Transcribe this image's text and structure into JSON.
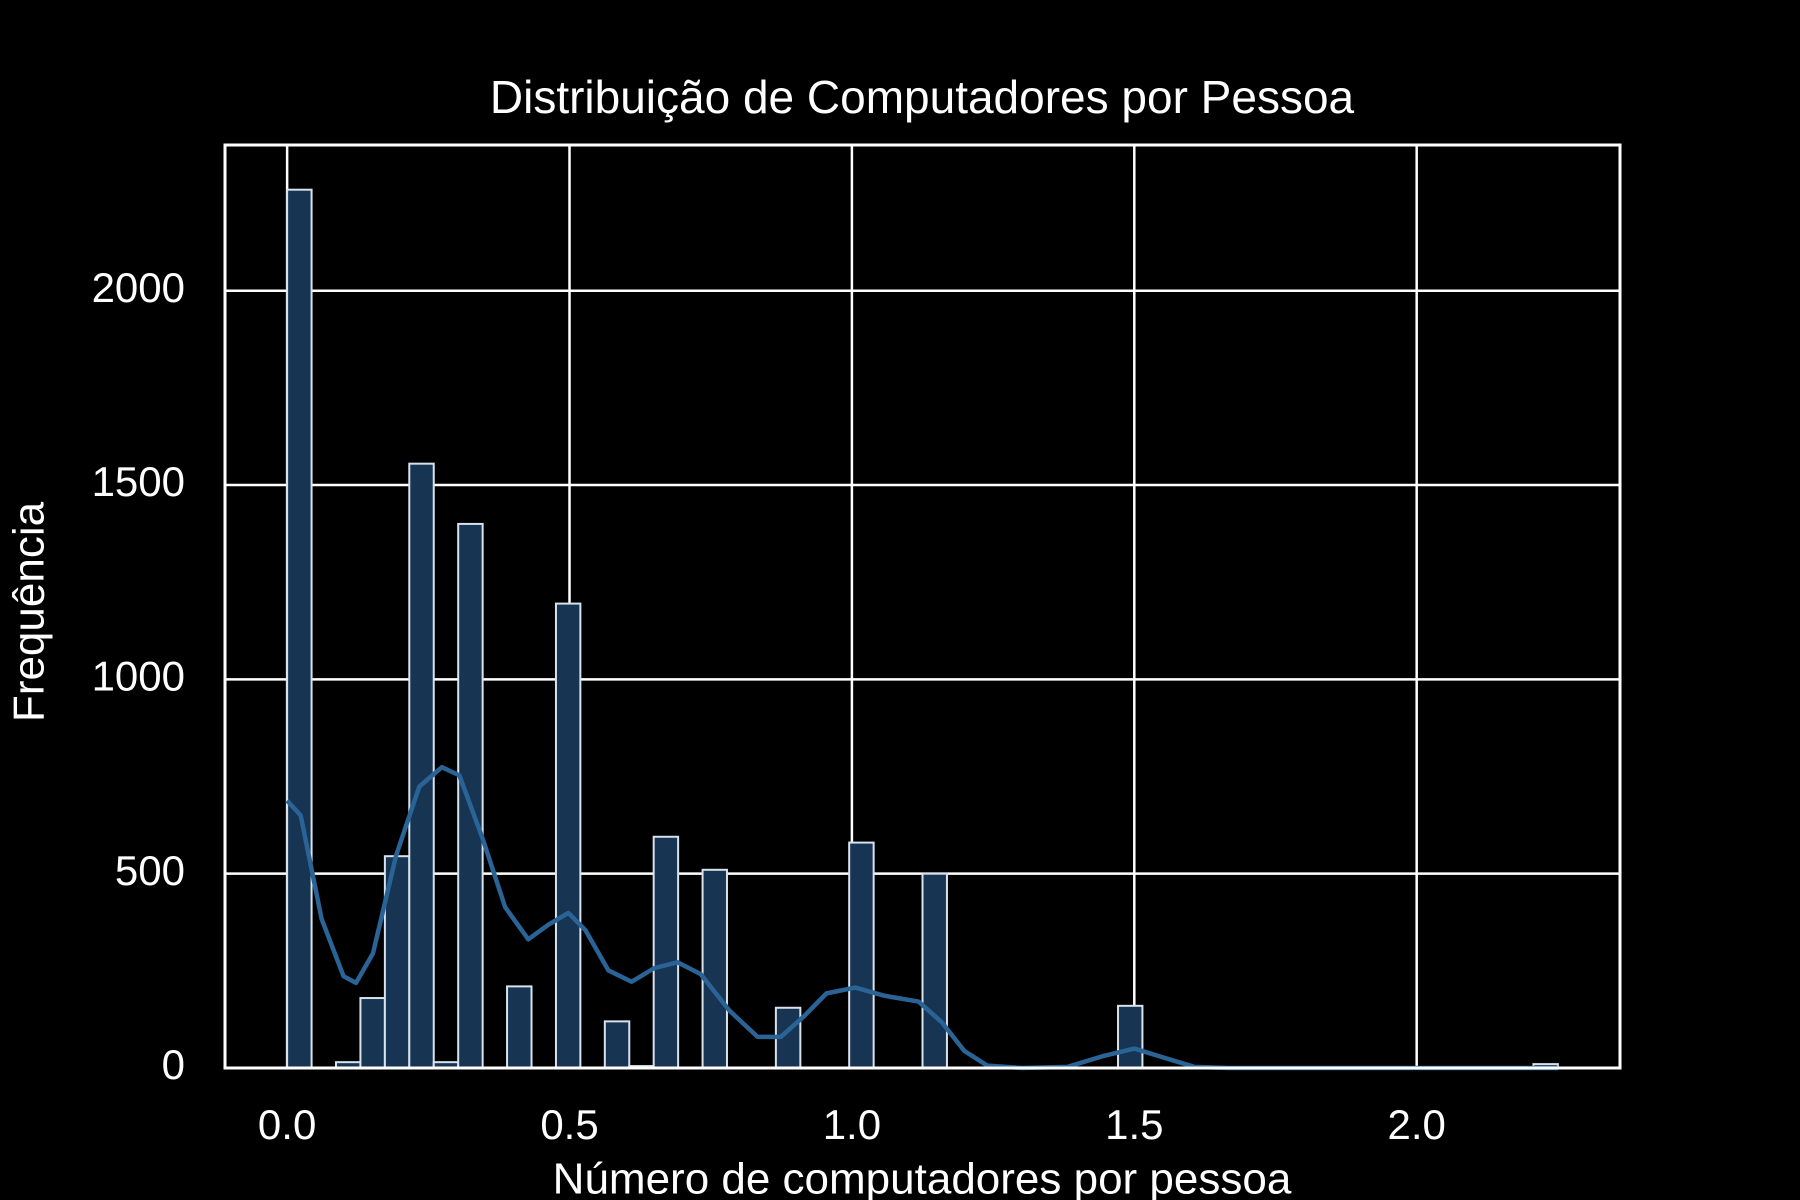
{
  "chart_data": {
    "type": "histogram",
    "title": "Distribuição de Computadores por Pessoa",
    "xlabel": "Número de computadores por pessoa",
    "ylabel": "Frequência",
    "bins": [
      0,
      0.0433,
      0.0865,
      0.1298,
      0.1731,
      0.2163,
      0.2596,
      0.3029,
      0.3462,
      0.3894,
      0.4327,
      0.476,
      0.5192,
      0.5625,
      0.6058,
      0.649,
      0.6923,
      0.7356,
      0.7788,
      0.8221,
      0.8654,
      0.9087,
      0.9519,
      0.9952,
      1.0385,
      1.0817,
      1.125,
      1.1683,
      1.2115,
      1.2548,
      1.2981,
      1.3413,
      1.3846,
      1.4279,
      1.4712,
      1.5144,
      1.5577,
      1.601,
      1.6442,
      1.6875,
      1.7308,
      1.774,
      1.8173,
      1.8606,
      1.9038,
      1.9471,
      1.9904,
      2.0337,
      2.0769,
      2.1202,
      2.1635,
      2.2067,
      2.25
    ],
    "values": [
      2260,
      0,
      15,
      180,
      545,
      1555,
      15,
      1400,
      0,
      210,
      0,
      1195,
      0,
      120,
      5,
      595,
      0,
      510,
      0,
      0,
      155,
      0,
      0,
      580,
      0,
      0,
      500,
      0,
      0,
      0,
      0,
      0,
      0,
      0,
      160,
      0,
      0,
      0,
      0,
      0,
      0,
      0,
      0,
      0,
      0,
      0,
      0,
      0,
      0,
      0,
      0,
      10
    ],
    "color": "#173452",
    "edgecolor": "#d8e2ec",
    "kde": {
      "color": "#2a6396",
      "x": [
        0,
        0.024,
        0.061,
        0.1,
        0.122,
        0.152,
        0.193,
        0.234,
        0.274,
        0.305,
        0.346,
        0.386,
        0.427,
        0.463,
        0.498,
        0.528,
        0.569,
        0.61,
        0.65,
        0.691,
        0.732,
        0.783,
        0.833,
        0.874,
        0.915,
        0.955,
        1.006,
        1.057,
        1.118,
        1.159,
        1.199,
        1.24,
        1.301,
        1.382,
        1.443,
        1.5,
        1.545,
        1.606,
        1.667,
        2.25
      ],
      "y": [
        688,
        650,
        384,
        236,
        219,
        295,
        547,
        724,
        774,
        753,
        591,
        414,
        331,
        369,
        399,
        355,
        251,
        222,
        257,
        272,
        242,
        148,
        80,
        80,
        133,
        192,
        207,
        186,
        171,
        118,
        44,
        6,
        0,
        3,
        30,
        50,
        30,
        3,
        0,
        0
      ]
    },
    "xlim": [
      -0.11,
      2.36
    ],
    "ylim": [
      0,
      2375
    ],
    "xticks": [
      {
        "value": 0,
        "label": "0.0"
      },
      {
        "value": 0.5,
        "label": "0.5"
      },
      {
        "value": 1,
        "label": "1.0"
      },
      {
        "value": 1.5,
        "label": "1.5"
      },
      {
        "value": 2,
        "label": "2.0"
      }
    ],
    "yticks": [
      0,
      500,
      1000,
      1500,
      2000
    ],
    "grid": true
  }
}
